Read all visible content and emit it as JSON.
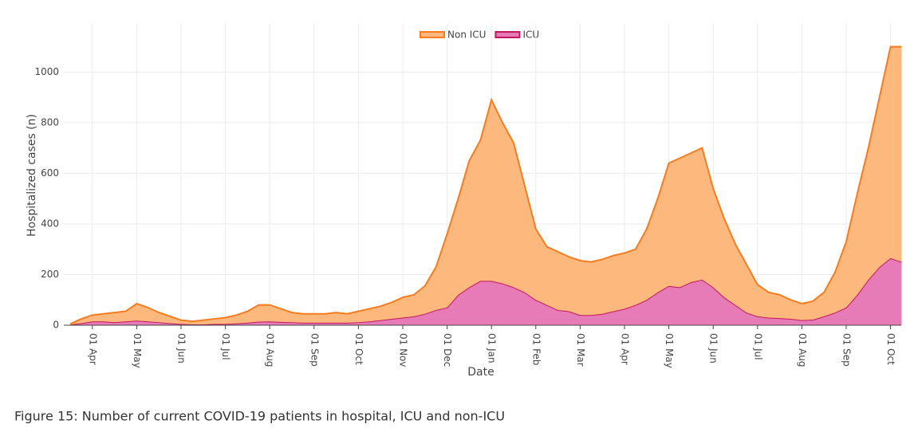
{
  "chart_data": {
    "type": "stacked_area",
    "y_label": "Hospitalized cases (n)",
    "x_label": "Date",
    "caption": "Figure 15: Number of current COVID-19 patients in hospital, ICU and non-ICU",
    "categories": [
      null,
      null,
      "01 Apr",
      null,
      null,
      null,
      "01 May",
      null,
      null,
      null,
      "01 Jun",
      null,
      null,
      null,
      "01 Jul",
      null,
      null,
      null,
      "01 Aug",
      null,
      null,
      null,
      "01 Sep",
      null,
      null,
      null,
      "01 Oct",
      null,
      null,
      null,
      "01 Nov",
      null,
      null,
      null,
      "01 Dec",
      null,
      null,
      null,
      "01 Jan",
      null,
      null,
      null,
      "01 Feb",
      null,
      null,
      null,
      "01 Mar",
      null,
      null,
      null,
      "01 Apr",
      null,
      null,
      null,
      "01 May",
      null,
      null,
      null,
      "01 Jun",
      null,
      null,
      null,
      "01 Jul",
      null,
      null,
      null,
      "01 Aug",
      null,
      null,
      null,
      "01 Sep",
      null,
      null,
      null,
      "01 Oct",
      null
    ],
    "series": [
      {
        "name": "ICU",
        "color": "#c2185b",
        "fill": "#e77bb7",
        "values": [
          2,
          8,
          15,
          15,
          12,
          15,
          18,
          15,
          12,
          8,
          5,
          3,
          3,
          5,
          5,
          7,
          10,
          14,
          15,
          13,
          12,
          10,
          10,
          10,
          10,
          10,
          12,
          15,
          20,
          25,
          30,
          35,
          45,
          60,
          70,
          120,
          150,
          175,
          175,
          165,
          150,
          130,
          100,
          80,
          60,
          55,
          40,
          40,
          45,
          55,
          65,
          80,
          100,
          130,
          155,
          150,
          170,
          180,
          150,
          110,
          80,
          50,
          35,
          30,
          28,
          25,
          20,
          22,
          35,
          50,
          70,
          120,
          180,
          230,
          265,
          250
        ]
      },
      {
        "name": "Non ICU",
        "color": "#f57c20",
        "fill": "#fdb97d",
        "values": [
          3,
          17,
          25,
          30,
          38,
          40,
          67,
          55,
          38,
          27,
          15,
          12,
          17,
          20,
          25,
          33,
          45,
          66,
          65,
          52,
          38,
          35,
          35,
          35,
          40,
          35,
          43,
          50,
          55,
          65,
          80,
          85,
          110,
          170,
          290,
          380,
          500,
          555,
          715,
          635,
          570,
          420,
          280,
          230,
          230,
          215,
          215,
          210,
          215,
          220,
          220,
          220,
          280,
          370,
          485,
          510,
          510,
          520,
          390,
          310,
          240,
          190,
          125,
          100,
          92,
          75,
          65,
          73,
          95,
          160,
          260,
          400,
          520,
          670,
          835,
          850
        ]
      }
    ],
    "ylim": [
      0,
      1190
    ],
    "yticks": [
      0,
      200,
      400,
      600,
      800,
      1000
    ],
    "grid": true,
    "legend": "top"
  }
}
